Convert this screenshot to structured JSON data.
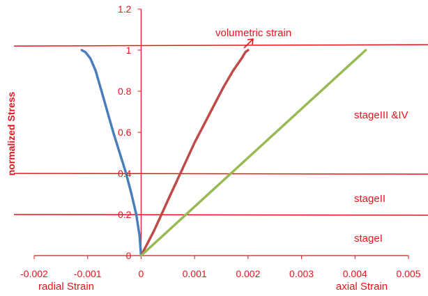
{
  "chart_data": {
    "type": "line",
    "title": "",
    "ylabel": "normalized Stress",
    "xlabel_left": "radial Strain",
    "xlabel_right": "axial Strain",
    "xlim": [
      -0.002,
      0.005
    ],
    "ylim": [
      0,
      1.2
    ],
    "x_ticks": [
      "-0.002",
      "-0.001",
      "0",
      "0.001",
      "0.002",
      "0.003",
      "0.004",
      "0.005"
    ],
    "y_ticks": [
      "0",
      "0.2",
      "0.4",
      "0.6",
      "0.8",
      "1",
      "1.2"
    ],
    "series": [
      {
        "color": "#4a7ebb",
        "x": [
          0,
          -3e-05,
          -9e-05,
          -0.00018,
          -0.00028,
          -0.0004,
          -0.00052,
          -0.00063,
          -0.00074,
          -0.00085,
          -0.00095,
          -0.00104,
          -0.00111
        ],
        "y": [
          0,
          0.1,
          0.2,
          0.3,
          0.4,
          0.5,
          0.6,
          0.7,
          0.8,
          0.9,
          0.96,
          0.99,
          1.0
        ]
      },
      {
        "color": "#be4b48",
        "x": [
          0,
          0.0001,
          0.00024,
          0.00038,
          0.00052,
          0.00068,
          0.00084,
          0.001,
          0.00118,
          0.00136,
          0.00154,
          0.00172,
          0.00188,
          0.00195,
          0.002
        ],
        "y": [
          0,
          0.05,
          0.12,
          0.2,
          0.28,
          0.37,
          0.46,
          0.55,
          0.64,
          0.73,
          0.82,
          0.9,
          0.96,
          0.99,
          1.0
        ]
      },
      {
        "color": "#98b954",
        "x": [
          0,
          0.0042
        ],
        "y": [
          0,
          1.0
        ]
      }
    ],
    "stage_lines_y": [
      0.2,
      0.4,
      1.02
    ],
    "annotations": {
      "volumetric": "volumetric strain",
      "stage3": "stageIII &IV",
      "stage2": "stageII",
      "stage1": "stageI"
    }
  }
}
